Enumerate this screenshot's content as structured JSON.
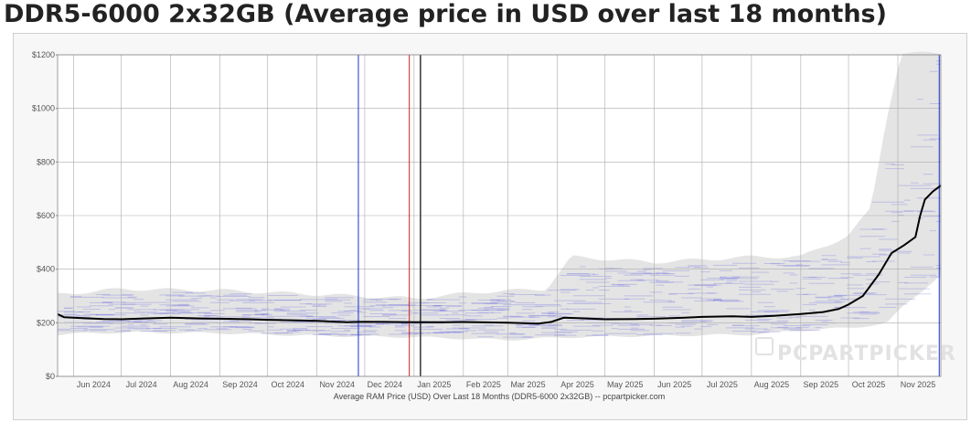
{
  "page_title": "DDR5-6000 2x32GB (Average price in USD over last 18 months)",
  "watermark_text": "PCPARTPICKER",
  "colors": {
    "average_line": "#000000",
    "price_band": "#e4e4e4",
    "retailer_lines": "#3a3ae0",
    "marker_blue": "#1f2fd0",
    "marker_red": "#d02020",
    "marker_dark": "#404040",
    "grid": "#aaaaaa",
    "plot_bg": "#ffffff"
  },
  "chart_data": {
    "type": "line",
    "caption": "Average RAM Price (USD) Over Last 18 Months (DDR5-6000 2x32GB) -- pcpartpicker.com",
    "xlabel": "",
    "ylabel": "",
    "x_range": [
      "2024-05-22",
      "2025-11-28"
    ],
    "ylim": [
      0,
      1200
    ],
    "y_ticks": [
      0,
      200,
      400,
      600,
      800,
      1000,
      1200
    ],
    "y_tick_labels": [
      "$0",
      "$200",
      "$400",
      "$600",
      "$800",
      "$1000",
      "$1200"
    ],
    "x_ticks": [
      {
        "date": "2024-06-01",
        "label": "Jun 2024"
      },
      {
        "date": "2024-07-01",
        "label": "Jul 2024"
      },
      {
        "date": "2024-08-01",
        "label": "Aug 2024"
      },
      {
        "date": "2024-09-01",
        "label": "Sep 2024"
      },
      {
        "date": "2024-10-01",
        "label": "Oct 2024"
      },
      {
        "date": "2024-11-01",
        "label": "Nov 2024"
      },
      {
        "date": "2024-12-01",
        "label": "Dec 2024"
      },
      {
        "date": "2025-01-01",
        "label": "Jan 2025"
      },
      {
        "date": "2025-02-01",
        "label": "Feb 2025"
      },
      {
        "date": "2025-03-01",
        "label": "Mar 2025"
      },
      {
        "date": "2025-04-01",
        "label": "Apr 2025"
      },
      {
        "date": "2025-05-01",
        "label": "May 2025"
      },
      {
        "date": "2025-06-01",
        "label": "Jun 2025"
      },
      {
        "date": "2025-07-01",
        "label": "Jul 2025"
      },
      {
        "date": "2025-08-01",
        "label": "Aug 2025"
      },
      {
        "date": "2025-09-01",
        "label": "Sep 2025"
      },
      {
        "date": "2025-10-01",
        "label": "Oct 2025"
      },
      {
        "date": "2025-11-01",
        "label": "Nov 2025"
      }
    ],
    "grid": true,
    "legend": "none",
    "markers": [
      {
        "date": "2024-11-27",
        "color": "blue"
      },
      {
        "date": "2024-12-29",
        "color": "red"
      },
      {
        "date": "2025-01-05",
        "color": "dark"
      },
      {
        "date": "2025-11-27",
        "color": "blue"
      }
    ],
    "series": [
      {
        "role": "average",
        "points": [
          [
            "2024-05-22",
            232
          ],
          [
            "2024-05-26",
            221
          ],
          [
            "2024-06-05",
            218
          ],
          [
            "2024-06-20",
            214
          ],
          [
            "2024-07-01",
            213
          ],
          [
            "2024-07-15",
            216
          ],
          [
            "2024-08-01",
            219
          ],
          [
            "2024-08-20",
            216
          ],
          [
            "2024-09-01",
            215
          ],
          [
            "2024-09-20",
            213
          ],
          [
            "2024-10-01",
            211
          ],
          [
            "2024-10-20",
            209
          ],
          [
            "2024-11-01",
            207
          ],
          [
            "2024-11-20",
            202
          ],
          [
            "2024-12-01",
            204
          ],
          [
            "2024-12-20",
            203
          ],
          [
            "2025-01-01",
            202
          ],
          [
            "2025-01-20",
            202
          ],
          [
            "2025-02-01",
            203
          ],
          [
            "2025-02-20",
            201
          ],
          [
            "2025-03-01",
            200
          ],
          [
            "2025-03-20",
            197
          ],
          [
            "2025-03-28",
            203
          ],
          [
            "2025-04-05",
            219
          ],
          [
            "2025-04-20",
            216
          ],
          [
            "2025-05-01",
            213
          ],
          [
            "2025-05-20",
            214
          ],
          [
            "2025-06-01",
            215
          ],
          [
            "2025-06-20",
            219
          ],
          [
            "2025-07-01",
            222
          ],
          [
            "2025-07-20",
            224
          ],
          [
            "2025-08-01",
            222
          ],
          [
            "2025-08-15",
            226
          ],
          [
            "2025-09-01",
            233
          ],
          [
            "2025-09-15",
            240
          ],
          [
            "2025-09-25",
            252
          ],
          [
            "2025-10-01",
            268
          ],
          [
            "2025-10-10",
            300
          ],
          [
            "2025-10-20",
            380
          ],
          [
            "2025-10-28",
            460
          ],
          [
            "2025-11-05",
            490
          ],
          [
            "2025-11-12",
            520
          ],
          [
            "2025-11-15",
            600
          ],
          [
            "2025-11-18",
            660
          ],
          [
            "2025-11-23",
            690
          ],
          [
            "2025-11-28",
            712
          ]
        ]
      },
      {
        "role": "price-range-upper",
        "points": [
          [
            "2024-05-22",
            300
          ],
          [
            "2024-07-01",
            320
          ],
          [
            "2024-09-01",
            315
          ],
          [
            "2024-11-01",
            300
          ],
          [
            "2025-01-01",
            285
          ],
          [
            "2025-02-15",
            310
          ],
          [
            "2025-03-25",
            320
          ],
          [
            "2025-04-10",
            440
          ],
          [
            "2025-06-01",
            420
          ],
          [
            "2025-08-01",
            440
          ],
          [
            "2025-09-01",
            440
          ],
          [
            "2025-10-01",
            520
          ],
          [
            "2025-10-15",
            620
          ],
          [
            "2025-10-25",
            960
          ],
          [
            "2025-11-03",
            1200
          ],
          [
            "2025-11-28",
            1200
          ]
        ]
      },
      {
        "role": "price-range-lower",
        "points": [
          [
            "2024-05-22",
            160
          ],
          [
            "2024-07-01",
            168
          ],
          [
            "2024-09-01",
            165
          ],
          [
            "2024-11-01",
            155
          ],
          [
            "2025-01-01",
            150
          ],
          [
            "2025-03-01",
            140
          ],
          [
            "2025-04-10",
            150
          ],
          [
            "2025-06-01",
            155
          ],
          [
            "2025-08-01",
            160
          ],
          [
            "2025-09-01",
            175
          ],
          [
            "2025-10-01",
            185
          ],
          [
            "2025-10-25",
            200
          ],
          [
            "2025-11-05",
            270
          ],
          [
            "2025-11-28",
            380
          ]
        ]
      }
    ]
  }
}
